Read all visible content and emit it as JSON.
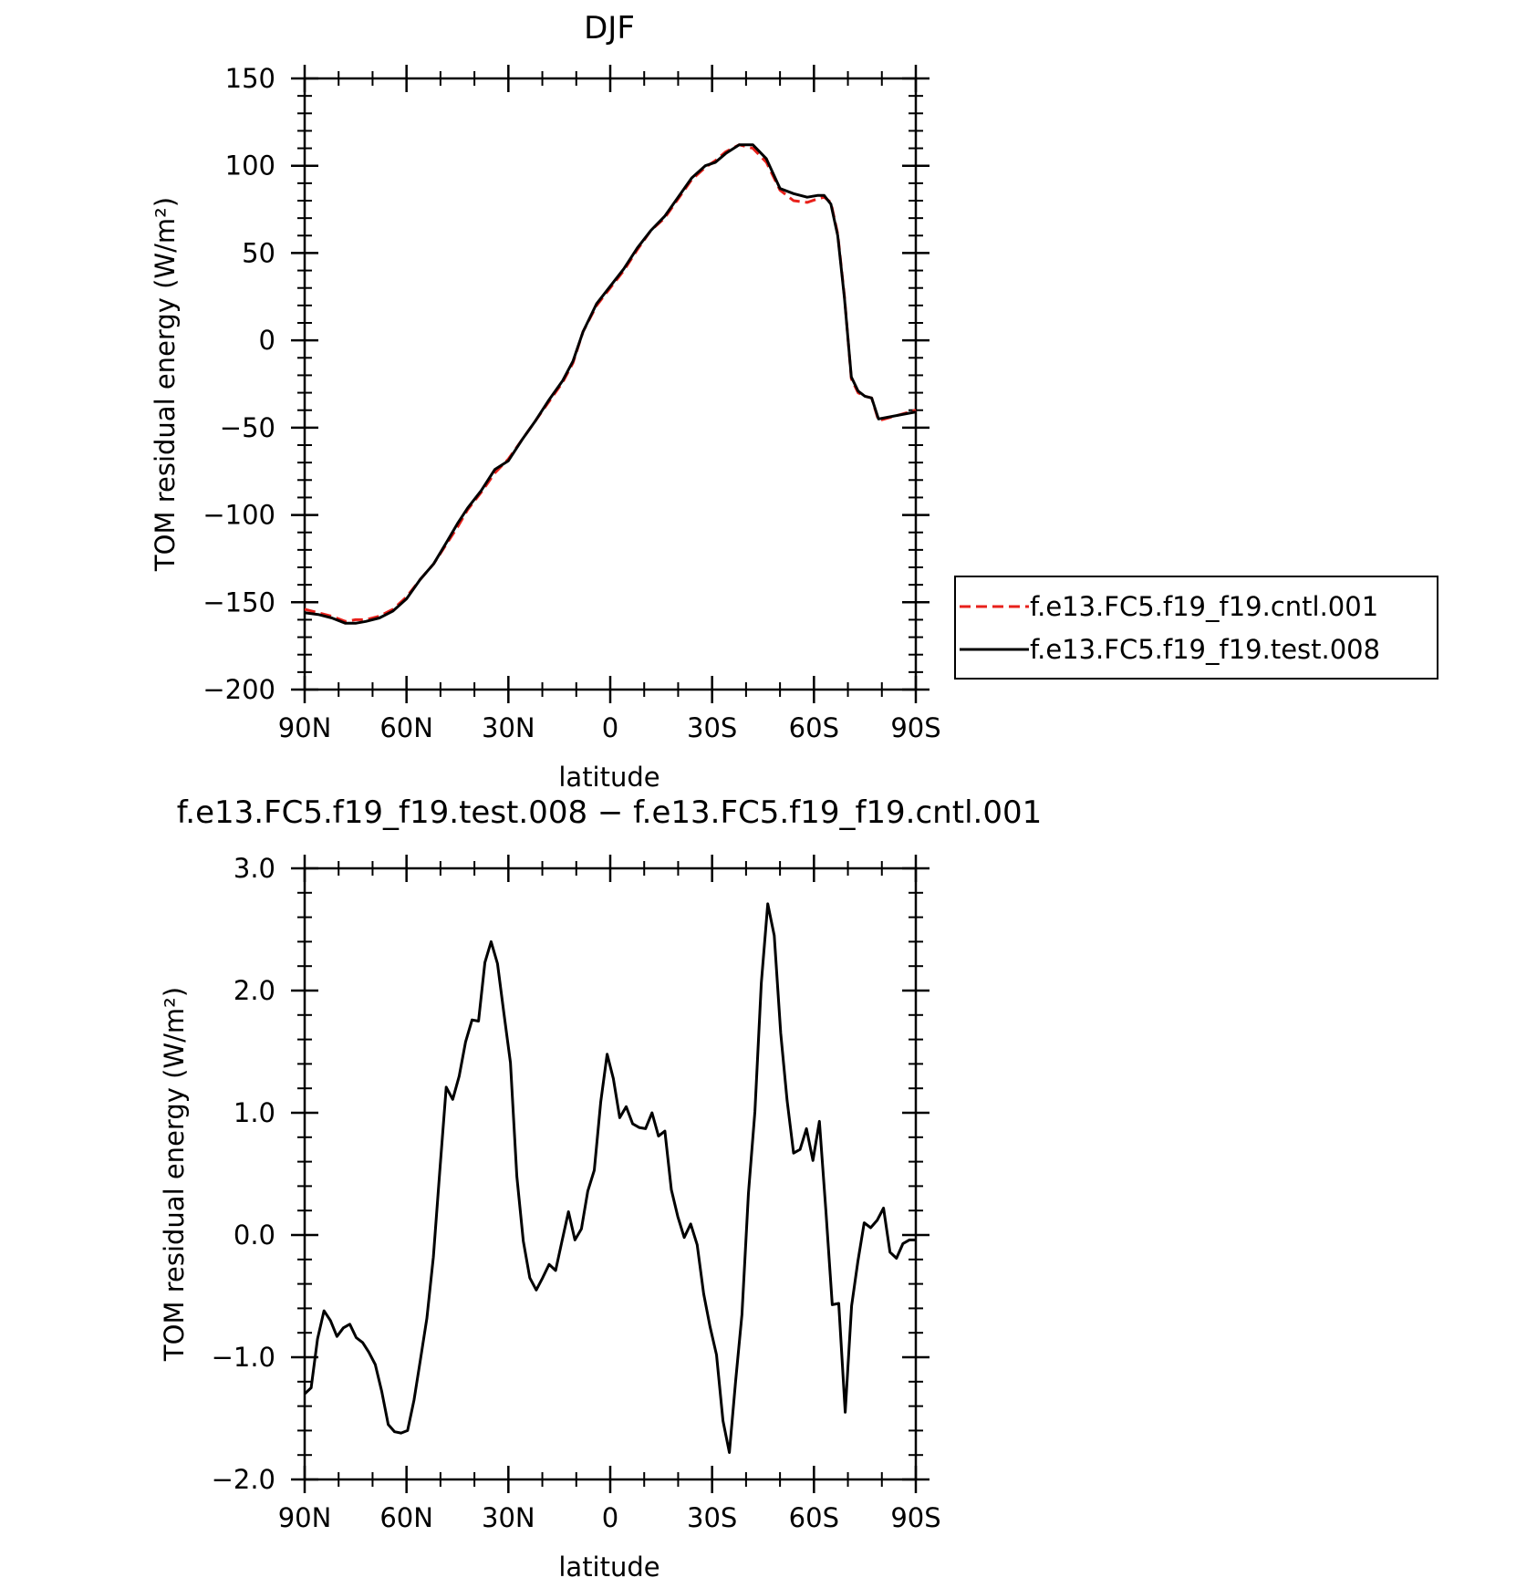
{
  "chart_data": [
    {
      "type": "line",
      "title": "DJF",
      "xlabel": "latitude",
      "ylabel": "TOM residual energy (W/m²)",
      "xlim": [
        90,
        -90
      ],
      "ylim": [
        -200,
        150
      ],
      "xticks": [
        90,
        60,
        30,
        0,
        -30,
        -60,
        -90
      ],
      "xtick_labels": [
        "90N",
        "60N",
        "30N",
        "0",
        "30S",
        "60S",
        "90S"
      ],
      "yticks": [
        150,
        100,
        50,
        0,
        -50,
        -100,
        -150,
        -200
      ],
      "ytick_labels": [
        "150",
        "100",
        "50",
        "0",
        "−50",
        "−100",
        "−150",
        "−200"
      ],
      "legend": "right",
      "series": [
        {
          "name": "f.e13.FC5.f19_f19.cntl.001",
          "color": "#e8211b",
          "style": "dashed",
          "x": [
            90,
            86,
            82,
            78,
            75,
            72,
            68,
            64,
            60,
            56,
            52,
            48,
            45,
            42,
            38,
            34,
            30,
            26,
            22,
            18,
            14,
            11,
            8,
            4,
            0,
            -4,
            -8,
            -12,
            -16,
            -20,
            -24,
            -28,
            -31,
            -34,
            -38,
            -42,
            -46,
            -50,
            -54,
            -58,
            -61,
            -63,
            -65,
            -67,
            -69,
            -71,
            -73,
            -75,
            -77,
            -79,
            -90
          ],
          "y": [
            -154,
            -156,
            -158,
            -161,
            -160,
            -160,
            -158,
            -154,
            -147,
            -137,
            -128,
            -116,
            -107,
            -97,
            -87,
            -76,
            -68,
            -57,
            -46,
            -35,
            -24,
            -13,
            5,
            20,
            30,
            40,
            52,
            63,
            70,
            81,
            92,
            99,
            103,
            108,
            112,
            110,
            102,
            86,
            80,
            79,
            81,
            82,
            79,
            61,
            25,
            -22,
            -30,
            -32,
            -33,
            -46,
            -40
          ]
        },
        {
          "name": "f.e13.FC5.f19_f19.test.008",
          "color": "#000000",
          "style": "solid",
          "x": [
            90,
            86,
            82,
            78,
            75,
            72,
            68,
            64,
            60,
            56,
            52,
            48,
            45,
            42,
            38,
            34,
            30,
            26,
            22,
            18,
            14,
            11,
            8,
            4,
            0,
            -4,
            -8,
            -12,
            -16,
            -20,
            -24,
            -28,
            -31,
            -34,
            -38,
            -42,
            -46,
            -50,
            -54,
            -58,
            -61,
            -63,
            -65,
            -67,
            -69,
            -71,
            -73,
            -75,
            -77,
            -79,
            -90
          ],
          "y": [
            -156,
            -157,
            -159,
            -162,
            -162,
            -161,
            -159,
            -155,
            -148,
            -137,
            -128,
            -115,
            -105,
            -96,
            -86,
            -74,
            -69,
            -57,
            -46,
            -34,
            -23,
            -12,
            5,
            21,
            31,
            41,
            53,
            63,
            71,
            82,
            93,
            100,
            102,
            107,
            112,
            112,
            104,
            87,
            84,
            82,
            83,
            83,
            78,
            60,
            24,
            -21,
            -29,
            -32,
            -33,
            -45,
            -41
          ]
        }
      ]
    },
    {
      "type": "line",
      "title": "f.e13.FC5.f19_f19.test.008 − f.e13.FC5.f19_f19.cntl.001",
      "xlabel": "latitude",
      "ylabel": "TOM residual energy (W/m²)",
      "xlim": [
        90,
        -90
      ],
      "ylim": [
        -2.0,
        3.0
      ],
      "xticks": [
        90,
        60,
        30,
        0,
        -30,
        -60,
        -90
      ],
      "xtick_labels": [
        "90N",
        "60N",
        "30N",
        "0",
        "30S",
        "60S",
        "90S"
      ],
      "yticks": [
        3.0,
        2.0,
        1.0,
        0.0,
        -1.0,
        -2.0
      ],
      "ytick_labels": [
        "3.0",
        "2.0",
        "1.0",
        "0.0",
        "−1.0",
        "−2.0"
      ],
      "series": [
        {
          "color": "#000000",
          "style": "solid",
          "x": [
            90.0,
            88.1,
            86.2,
            84.3,
            82.4,
            80.5,
            78.6,
            76.7,
            74.8,
            72.9,
            71.1,
            69.2,
            67.3,
            65.4,
            63.5,
            61.6,
            59.7,
            57.8,
            55.9,
            54.0,
            52.1,
            50.2,
            48.3,
            46.4,
            44.5,
            42.6,
            40.7,
            38.8,
            36.9,
            35.1,
            33.2,
            31.3,
            29.4,
            27.5,
            25.6,
            23.7,
            21.8,
            19.9,
            18.0,
            16.1,
            14.2,
            12.3,
            10.4,
            8.5,
            6.6,
            4.7,
            2.8,
            0.9,
            -0.9,
            -2.8,
            -4.7,
            -6.6,
            -8.5,
            -10.4,
            -12.3,
            -14.2,
            -16.1,
            -18.0,
            -19.9,
            -21.8,
            -23.7,
            -25.6,
            -27.5,
            -29.4,
            -31.3,
            -33.2,
            -35.1,
            -36.9,
            -38.8,
            -40.7,
            -42.6,
            -44.5,
            -46.4,
            -48.3,
            -50.2,
            -52.1,
            -54.0,
            -55.9,
            -57.8,
            -59.7,
            -61.6,
            -63.5,
            -65.4,
            -67.3,
            -69.2,
            -71.1,
            -72.9,
            -74.8,
            -76.7,
            -78.6,
            -80.5,
            -82.4,
            -84.3,
            -86.2,
            -88.1,
            -90.0
          ],
          "y": [
            -1.3,
            -1.25,
            -0.85,
            -0.62,
            -0.7,
            -0.83,
            -0.76,
            -0.73,
            -0.84,
            -0.88,
            -0.96,
            -1.06,
            -1.28,
            -1.55,
            -1.61,
            -1.62,
            -1.6,
            -1.35,
            -1.02,
            -0.68,
            -0.18,
            0.52,
            1.21,
            1.11,
            1.3,
            1.58,
            1.76,
            1.75,
            2.23,
            2.4,
            2.22,
            1.81,
            1.41,
            0.48,
            -0.05,
            -0.35,
            -0.45,
            -0.35,
            -0.24,
            -0.29,
            -0.05,
            0.19,
            -0.04,
            0.05,
            0.36,
            0.53,
            1.09,
            1.48,
            1.28,
            0.96,
            1.05,
            0.91,
            0.88,
            0.87,
            1.0,
            0.81,
            0.85,
            0.37,
            0.15,
            -0.02,
            0.09,
            -0.08,
            -0.48,
            -0.75,
            -0.98,
            -1.52,
            -1.78,
            -1.2,
            -0.65,
            0.34,
            1.01,
            2.06,
            2.71,
            2.45,
            1.65,
            1.1,
            0.67,
            0.7,
            0.87,
            0.61,
            0.93,
            0.2,
            -0.57,
            -0.56,
            -1.45,
            -0.58,
            -0.22,
            0.1,
            0.06,
            0.12,
            0.22,
            -0.14,
            -0.19,
            -0.07,
            -0.04,
            -0.04
          ]
        }
      ]
    }
  ]
}
